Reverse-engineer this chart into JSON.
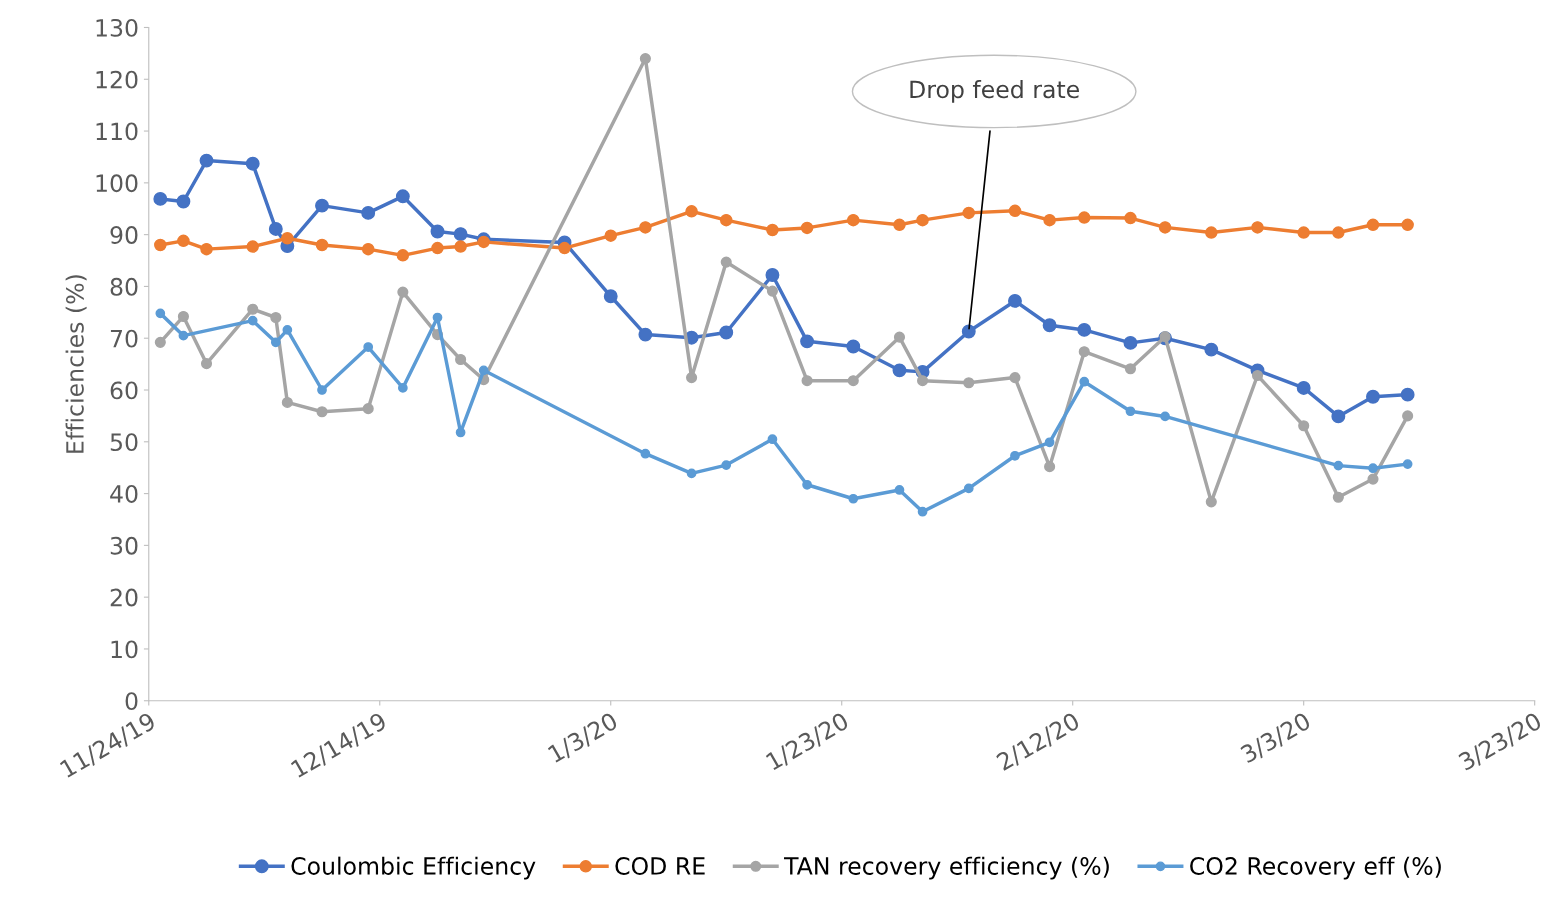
{
  "chart_data": {
    "type": "line",
    "ylabel": "Efficiencies (%)",
    "marker": "circle",
    "line_style": "solid",
    "grid": false,
    "legend": "bottom",
    "xlim": [
      "2019-11-24",
      "2020-03-23"
    ],
    "xticks": [
      {
        "value": "2019-11-24",
        "label": "11/24/19"
      },
      {
        "value": "2019-12-14",
        "label": "12/14/19"
      },
      {
        "value": "2020-01-03",
        "label": "1/3/20"
      },
      {
        "value": "2020-01-23",
        "label": "1/23/20"
      },
      {
        "value": "2020-02-12",
        "label": "2/12/20"
      },
      {
        "value": "2020-03-03",
        "label": "3/3/20"
      },
      {
        "value": "2020-03-23",
        "label": "3/23/20"
      }
    ],
    "ylim": [
      0,
      130
    ],
    "yticks": [
      0,
      10,
      20,
      30,
      40,
      50,
      60,
      70,
      80,
      90,
      100,
      110,
      120,
      130
    ],
    "annotations": [
      {
        "text": "Drop feed rate",
        "x": "2020-02-03",
        "y": 71.3
      }
    ],
    "series": [
      {
        "name": "Coulombic Efficiency",
        "color": "#4472c4",
        "x": [
          "2019-11-25",
          "2019-11-27",
          "2019-11-29",
          "2019-12-03",
          "2019-12-05",
          "2019-12-06",
          "2019-12-09",
          "2019-12-13",
          "2019-12-16",
          "2019-12-19",
          "2019-12-21",
          "2019-12-23",
          "2019-12-30",
          "2020-01-03",
          "2020-01-06",
          "2020-01-10",
          "2020-01-13",
          "2020-01-17",
          "2020-01-20",
          "2020-01-24",
          "2020-01-28",
          "2020-01-30",
          "2020-02-03",
          "2020-02-07",
          "2020-02-10",
          "2020-02-13",
          "2020-02-17",
          "2020-02-20",
          "2020-02-24",
          "2020-02-28",
          "2020-03-03",
          "2020-03-06",
          "2020-03-09",
          "2020-03-12"
        ],
        "values": [
          96.9,
          96.4,
          104.3,
          103.7,
          91.1,
          87.8,
          95.6,
          94.2,
          97.4,
          90.6,
          90.1,
          89.1,
          88.5,
          78.1,
          70.7,
          70.1,
          71.1,
          82.2,
          69.4,
          68.4,
          63.8,
          63.5,
          71.3,
          77.2,
          72.5,
          71.6,
          69.1,
          70.0,
          67.8,
          63.8,
          60.4,
          54.9,
          58.7,
          59.1
        ]
      },
      {
        "name": "COD RE",
        "color": "#ed7d31",
        "x": [
          "2019-11-25",
          "2019-11-27",
          "2019-11-29",
          "2019-12-03",
          "2019-12-06",
          "2019-12-09",
          "2019-12-13",
          "2019-12-16",
          "2019-12-19",
          "2019-12-21",
          "2019-12-23",
          "2019-12-30",
          "2020-01-03",
          "2020-01-06",
          "2020-01-10",
          "2020-01-13",
          "2020-01-17",
          "2020-01-20",
          "2020-01-24",
          "2020-01-28",
          "2020-01-30",
          "2020-02-03",
          "2020-02-07",
          "2020-02-10",
          "2020-02-13",
          "2020-02-17",
          "2020-02-20",
          "2020-02-24",
          "2020-02-28",
          "2020-03-03",
          "2020-03-06",
          "2020-03-09",
          "2020-03-12"
        ],
        "values": [
          88.0,
          88.8,
          87.2,
          87.7,
          89.3,
          88.0,
          87.2,
          86.0,
          87.4,
          87.7,
          88.6,
          87.4,
          89.8,
          91.4,
          94.5,
          92.8,
          90.9,
          91.3,
          92.8,
          91.9,
          92.8,
          94.2,
          94.6,
          92.8,
          93.3,
          93.2,
          91.4,
          90.4,
          91.4,
          90.4,
          90.4,
          91.9,
          91.9
        ]
      },
      {
        "name": "TAN recovery efficiency (%)",
        "color": "#a5a5a5",
        "x": [
          "2019-11-25",
          "2019-11-27",
          "2019-11-29",
          "2019-12-03",
          "2019-12-05",
          "2019-12-06",
          "2019-12-09",
          "2019-12-13",
          "2019-12-16",
          "2019-12-19",
          "2019-12-21",
          "2019-12-23",
          "2020-01-06",
          "2020-01-10",
          "2020-01-13",
          "2020-01-17",
          "2020-01-20",
          "2020-01-24",
          "2020-01-28",
          "2020-01-30",
          "2020-02-03",
          "2020-02-07",
          "2020-02-10",
          "2020-02-13",
          "2020-02-17",
          "2020-02-20",
          "2020-02-24",
          "2020-02-28",
          "2020-03-03",
          "2020-03-06",
          "2020-03-09",
          "2020-03-12"
        ],
        "values": [
          69.2,
          74.2,
          65.1,
          75.6,
          74.0,
          57.6,
          55.8,
          56.4,
          78.9,
          70.7,
          65.9,
          62.0,
          124.0,
          62.4,
          84.7,
          79.1,
          61.8,
          61.8,
          70.2,
          61.8,
          61.4,
          62.4,
          45.2,
          67.4,
          64.1,
          70.3,
          38.4,
          62.8,
          53.1,
          39.3,
          42.8,
          55.0
        ]
      },
      {
        "name": "CO2 Recovery eff (%)",
        "color": "#5b9bd5",
        "x": [
          "2019-11-25",
          "2019-11-27",
          "2019-12-03",
          "2019-12-05",
          "2019-12-06",
          "2019-12-09",
          "2019-12-13",
          "2019-12-16",
          "2019-12-19",
          "2019-12-21",
          "2019-12-23",
          "2020-01-06",
          "2020-01-10",
          "2020-01-13",
          "2020-01-17",
          "2020-01-20",
          "2020-01-24",
          "2020-01-28",
          "2020-01-30",
          "2020-02-03",
          "2020-02-07",
          "2020-02-10",
          "2020-02-13",
          "2020-02-17",
          "2020-02-20",
          "2020-03-06",
          "2020-03-09",
          "2020-03-12"
        ],
        "values": [
          74.8,
          70.5,
          73.4,
          69.2,
          71.6,
          60.0,
          68.3,
          60.4,
          74.0,
          51.8,
          63.8,
          47.7,
          43.9,
          45.5,
          50.5,
          41.7,
          39.0,
          40.7,
          36.5,
          41.0,
          47.3,
          49.9,
          61.6,
          55.9,
          54.9,
          45.4,
          44.9,
          45.7
        ]
      }
    ]
  }
}
